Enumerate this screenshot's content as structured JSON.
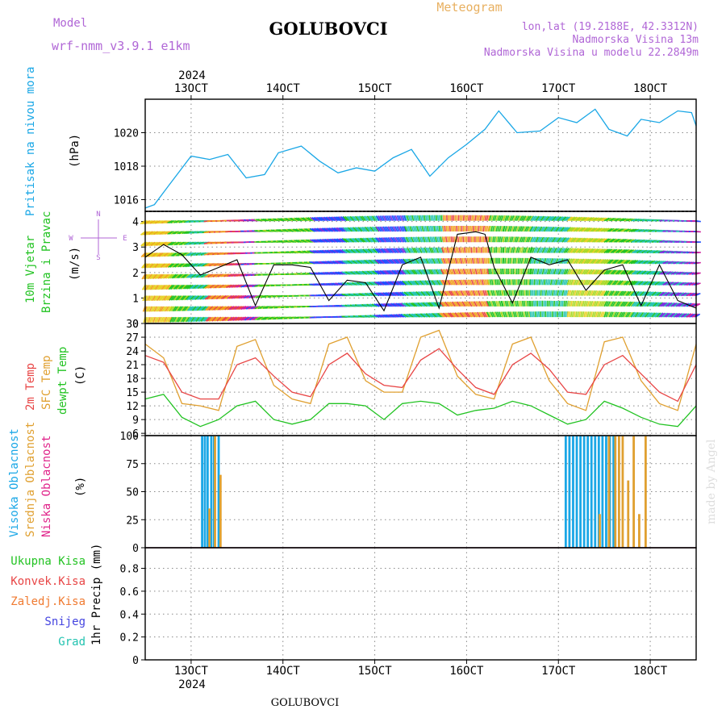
{
  "header": {
    "model_label": "Model",
    "model_name": "wrf-nmm_v3.9.1 e1km",
    "station_title": "GOLUBOVCI",
    "meteogram_label": "Meteogram",
    "location": "lon,lat (19.2188E, 42.3312N)",
    "altitude": "Nadmorska Visina 13m",
    "model_altitude": "Nadmorska Visina u modelu 22.2849m",
    "year_top": "2024",
    "year_bottom": "2024",
    "footer_station": "GOLUBOVCI",
    "watermark": "made by Angel"
  },
  "colors": {
    "pressure": "#1aa7e6",
    "temp2m": "#e84545",
    "sfc_temp": "#e0a030",
    "dewpt": "#22c322",
    "cloud_high": "#1aa7e6",
    "cloud_mid": "#e0a030",
    "cloud_low": "#e0248a",
    "precip_total": "#22c322",
    "precip_conv": "#e84545",
    "precip_freezing": "#f07a30",
    "snow": "#4444e0",
    "hail": "#22c3b0",
    "wind_label": "#22c322",
    "axis": "#000000",
    "grid": "#888888",
    "purple": "#b066d6"
  },
  "x_axis": {
    "date_ticks": [
      "13OCT",
      "14OCT",
      "15OCT",
      "16OCT",
      "17OCT",
      "18OCT"
    ],
    "x_range_days": [
      12.5,
      18.5
    ]
  },
  "panels": {
    "pressure": {
      "label1": "Pritisak na nivou mora",
      "unit": "(hPa)",
      "ticks": [
        "1016",
        "1018",
        "1020"
      ]
    },
    "wind": {
      "label1": "10m Vjetar",
      "label2": "Brzina i Pravac",
      "unit": "(m/s)",
      "ticks": [
        "0",
        "1",
        "2",
        "3",
        "4"
      ],
      "compass": {
        "n": "N",
        "s": "S",
        "w": "W",
        "e": "E"
      }
    },
    "temp": {
      "label1": "2m Temp",
      "label2": "SFC Temp",
      "label3": "dewpt Temp",
      "unit": "(C)",
      "ticks": [
        "6",
        "9",
        "12",
        "15",
        "18",
        "21",
        "24",
        "27",
        "30"
      ]
    },
    "cloud": {
      "label1": "Visoka Oblacnost",
      "label2": "Srednja Oblacnost",
      "label3": "Niska Oblacnost",
      "unit": "(%)",
      "ticks": [
        "0",
        "25",
        "50",
        "75",
        "100"
      ]
    },
    "precip": {
      "legend": [
        "Ukupna Kisa",
        "Konvek.Kisa",
        "Zaledj.Kisa",
        "Snijeg",
        "Grad"
      ],
      "unit": "1hr Precip (mm)",
      "ticks": [
        "0",
        "0.2",
        "0.4",
        "0.6",
        "0.8"
      ]
    }
  },
  "chart_data": [
    {
      "type": "line",
      "title": "Pritisak na nivou mora",
      "ylabel": "(hPa)",
      "ylim": [
        1015.3,
        1022
      ],
      "x_unit": "day of October 2024",
      "series": [
        {
          "name": "Pritisak na nivou mora",
          "x": [
            12.5,
            12.6,
            12.75,
            13.0,
            13.2,
            13.4,
            13.6,
            13.8,
            13.95,
            14.2,
            14.4,
            14.6,
            14.8,
            15.0,
            15.2,
            15.4,
            15.6,
            15.8,
            16.0,
            16.2,
            16.35,
            16.55,
            16.8,
            17.0,
            17.2,
            17.4,
            17.55,
            17.75,
            17.9,
            18.1,
            18.3,
            18.45,
            18.5
          ],
          "y": [
            1015.5,
            1015.7,
            1016.8,
            1018.6,
            1018.4,
            1018.7,
            1017.3,
            1017.5,
            1018.8,
            1019.2,
            1018.3,
            1017.6,
            1017.9,
            1017.7,
            1018.5,
            1019.0,
            1017.4,
            1018.5,
            1019.3,
            1020.2,
            1021.3,
            1020.0,
            1020.1,
            1020.9,
            1020.6,
            1021.4,
            1020.2,
            1019.8,
            1020.8,
            1020.6,
            1021.3,
            1021.2,
            1020.4
          ]
        }
      ]
    },
    {
      "type": "line",
      "title": "10m Vjetar Brzina i Pravac",
      "ylabel": "(m/s)",
      "ylim": [
        0,
        4.4
      ],
      "series": [
        {
          "name": "10m Vjetar Brzina i Pravac",
          "x": [
            12.5,
            12.7,
            12.9,
            13.1,
            13.3,
            13.5,
            13.7,
            13.9,
            14.1,
            14.3,
            14.5,
            14.7,
            14.9,
            15.1,
            15.3,
            15.5,
            15.7,
            15.9,
            16.1,
            16.2,
            16.3,
            16.5,
            16.7,
            16.9,
            17.1,
            17.3,
            17.5,
            17.7,
            17.9,
            18.1,
            18.3,
            18.5
          ],
          "y": [
            2.6,
            3.1,
            2.7,
            1.9,
            2.2,
            2.5,
            0.7,
            2.3,
            2.3,
            2.2,
            0.9,
            1.7,
            1.6,
            0.5,
            2.3,
            2.6,
            0.6,
            3.5,
            3.6,
            3.5,
            2.2,
            0.8,
            2.6,
            2.3,
            2.5,
            1.3,
            2.1,
            2.3,
            0.7,
            2.3,
            0.9,
            0.6
          ]
        }
      ]
    },
    {
      "type": "line",
      "title": "2m Temp / SFC Temp / dewpt Temp",
      "ylabel": "(C)",
      "ylim": [
        5.5,
        30
      ],
      "series": [
        {
          "name": "2m Temp",
          "x": [
            12.5,
            12.7,
            12.9,
            13.1,
            13.3,
            13.5,
            13.7,
            13.9,
            14.1,
            14.3,
            14.5,
            14.7,
            14.9,
            15.1,
            15.3,
            15.5,
            15.7,
            15.9,
            16.1,
            16.3,
            16.5,
            16.7,
            16.9,
            17.1,
            17.3,
            17.5,
            17.7,
            17.9,
            18.1,
            18.3,
            18.5
          ],
          "y": [
            23,
            21.5,
            15,
            13.5,
            13.5,
            21,
            22.5,
            18.5,
            15,
            14,
            21,
            23.5,
            19,
            16.5,
            16,
            22,
            24.5,
            20,
            16,
            14.5,
            21,
            23.5,
            20,
            15,
            14.5,
            21,
            23,
            19,
            15,
            13,
            21
          ]
        },
        {
          "name": "SFC Temp",
          "x": [
            12.5,
            12.7,
            12.9,
            13.1,
            13.3,
            13.5,
            13.7,
            13.9,
            14.1,
            14.3,
            14.5,
            14.7,
            14.9,
            15.1,
            15.3,
            15.5,
            15.7,
            15.9,
            16.1,
            16.3,
            16.5,
            16.7,
            16.9,
            17.1,
            17.3,
            17.5,
            17.7,
            17.9,
            18.1,
            18.3,
            18.5
          ],
          "y": [
            25.5,
            22.5,
            12.5,
            12,
            11,
            25,
            26.5,
            16.5,
            13.5,
            12.5,
            25.5,
            27,
            17.5,
            15,
            15,
            27,
            28.5,
            18.5,
            14.5,
            13.5,
            25.5,
            27,
            17.5,
            12.5,
            11,
            26,
            27,
            17.5,
            12.5,
            11,
            25.5
          ]
        },
        {
          "name": "dewpt Temp",
          "x": [
            12.5,
            12.7,
            12.9,
            13.1,
            13.3,
            13.5,
            13.7,
            13.9,
            14.1,
            14.3,
            14.5,
            14.7,
            14.9,
            15.1,
            15.3,
            15.5,
            15.7,
            15.9,
            16.1,
            16.3,
            16.5,
            16.7,
            16.9,
            17.1,
            17.3,
            17.5,
            17.7,
            17.9,
            18.1,
            18.3,
            18.5
          ],
          "y": [
            13.5,
            14.5,
            9.5,
            7.5,
            9,
            12,
            13,
            9,
            8,
            9,
            12.5,
            12.5,
            12,
            9,
            12.5,
            13,
            12.5,
            10,
            11,
            11.5,
            13,
            12,
            10,
            8,
            9,
            13,
            11.5,
            9.5,
            8,
            7.5,
            12
          ]
        }
      ]
    },
    {
      "type": "bar",
      "title": "Oblacnost",
      "ylabel": "(%)",
      "ylim": [
        0,
        100
      ],
      "series": [
        {
          "name": "Visoka Oblacnost",
          "x": [
            13.12,
            13.15,
            13.18,
            13.22,
            13.25,
            13.3,
            17.08,
            17.12,
            17.16,
            17.2,
            17.24,
            17.28,
            17.32,
            17.36,
            17.4,
            17.44,
            17.48,
            17.52,
            17.56,
            17.6
          ],
          "y": [
            100,
            100,
            100,
            100,
            100,
            100,
            100,
            100,
            100,
            100,
            100,
            100,
            100,
            100,
            100,
            100,
            100,
            100,
            100,
            100
          ]
        },
        {
          "name": "Srednja Oblacnost",
          "x": [
            13.2,
            13.26,
            13.32,
            17.45,
            17.55,
            17.62,
            17.66,
            17.7,
            17.76,
            17.82,
            17.88,
            17.95
          ],
          "y": [
            35,
            100,
            65,
            30,
            100,
            100,
            100,
            100,
            60,
            100,
            30,
            100
          ]
        },
        {
          "name": "Niska Oblacnost",
          "x": [
            12.5,
            18.5
          ],
          "y": [
            0,
            0
          ]
        }
      ]
    },
    {
      "type": "line",
      "title": "1hr Precip",
      "ylabel": "1hr Precip (mm)",
      "ylim": [
        0,
        0.98
      ],
      "series": [
        {
          "name": "Ukupna Kisa",
          "x": [
            12.5,
            18.5
          ],
          "y": [
            0,
            0
          ]
        }
      ]
    }
  ]
}
